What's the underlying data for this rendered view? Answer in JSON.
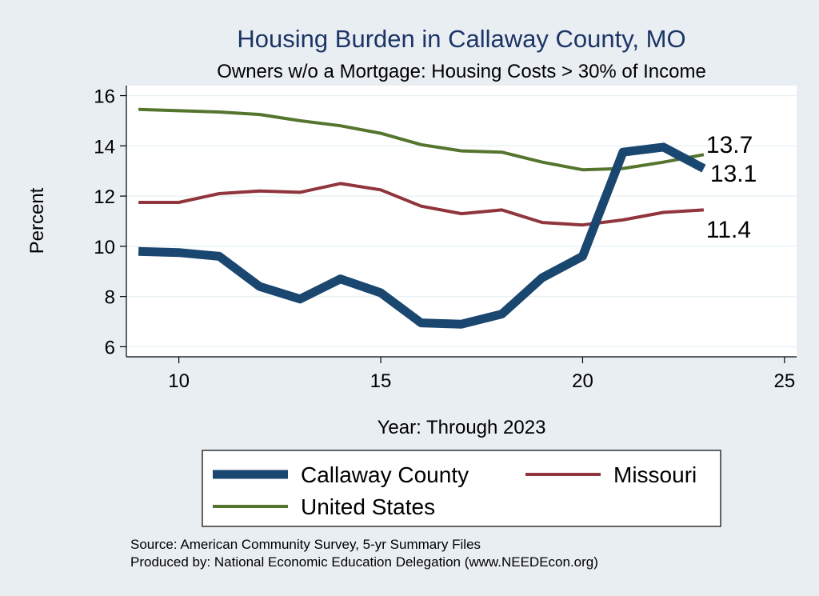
{
  "chart_data": {
    "type": "line",
    "title": "Housing Burden in Callaway County, MO",
    "subtitle": "Owners w/o a Mortgage: Housing Costs > 30% of Income",
    "xlabel": "Year: Through 2023",
    "ylabel": "Percent",
    "xlim": [
      8.7,
      25.3
    ],
    "ylim": [
      5.6,
      16.4
    ],
    "xticks": [
      10,
      15,
      20,
      25
    ],
    "yticks": [
      6,
      8,
      10,
      12,
      14,
      16
    ],
    "grid": true,
    "x": [
      9,
      10,
      11,
      12,
      13,
      14,
      15,
      16,
      17,
      18,
      19,
      20,
      21,
      22,
      23
    ],
    "series": [
      {
        "name": "Callaway County",
        "color": "#1a476f",
        "values": [
          9.8,
          9.75,
          9.6,
          8.4,
          7.9,
          8.7,
          8.15,
          6.95,
          6.9,
          7.3,
          8.75,
          9.6,
          13.75,
          13.95,
          13.1
        ],
        "end_label": "13.1"
      },
      {
        "name": "Missouri",
        "color": "#90353b",
        "values": [
          11.75,
          11.75,
          12.1,
          12.2,
          12.15,
          12.5,
          12.25,
          11.6,
          11.3,
          11.45,
          10.95,
          10.85,
          11.05,
          11.35,
          11.45
        ],
        "end_label": "11.4"
      },
      {
        "name": "United States",
        "color": "#55752f",
        "values": [
          15.45,
          15.4,
          15.35,
          15.25,
          15.0,
          14.8,
          14.5,
          14.05,
          13.8,
          13.75,
          13.35,
          13.05,
          13.1,
          13.35,
          13.65
        ],
        "end_label": "13.7"
      }
    ],
    "legend": {
      "position": "bottom",
      "entries": [
        "Callaway County",
        "Missouri",
        "United States"
      ]
    }
  },
  "source_note": {
    "line1": "Source: American Community Survey, 5-yr Summary Files",
    "line2": "Produced by: National Economic Education Delegation (www.NEEDEcon.org)"
  }
}
